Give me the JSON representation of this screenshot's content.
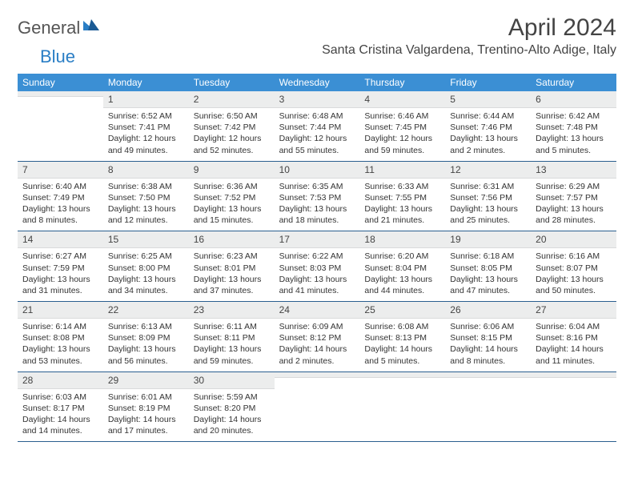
{
  "logo": {
    "text1": "General",
    "text2": "Blue"
  },
  "title": "April 2024",
  "location": "Santa Cristina Valgardena, Trentino-Alto Adige, Italy",
  "colors": {
    "header_bg": "#3b8fd4",
    "daynum_bg": "#eceded",
    "week_border": "#2a5f8f",
    "logo_blue": "#2a7ec5"
  },
  "dow": [
    "Sunday",
    "Monday",
    "Tuesday",
    "Wednesday",
    "Thursday",
    "Friday",
    "Saturday"
  ],
  "weeks": [
    [
      {
        "n": "",
        "sr": "",
        "ss": "",
        "dl": ""
      },
      {
        "n": "1",
        "sr": "Sunrise: 6:52 AM",
        "ss": "Sunset: 7:41 PM",
        "dl": "Daylight: 12 hours and 49 minutes."
      },
      {
        "n": "2",
        "sr": "Sunrise: 6:50 AM",
        "ss": "Sunset: 7:42 PM",
        "dl": "Daylight: 12 hours and 52 minutes."
      },
      {
        "n": "3",
        "sr": "Sunrise: 6:48 AM",
        "ss": "Sunset: 7:44 PM",
        "dl": "Daylight: 12 hours and 55 minutes."
      },
      {
        "n": "4",
        "sr": "Sunrise: 6:46 AM",
        "ss": "Sunset: 7:45 PM",
        "dl": "Daylight: 12 hours and 59 minutes."
      },
      {
        "n": "5",
        "sr": "Sunrise: 6:44 AM",
        "ss": "Sunset: 7:46 PM",
        "dl": "Daylight: 13 hours and 2 minutes."
      },
      {
        "n": "6",
        "sr": "Sunrise: 6:42 AM",
        "ss": "Sunset: 7:48 PM",
        "dl": "Daylight: 13 hours and 5 minutes."
      }
    ],
    [
      {
        "n": "7",
        "sr": "Sunrise: 6:40 AM",
        "ss": "Sunset: 7:49 PM",
        "dl": "Daylight: 13 hours and 8 minutes."
      },
      {
        "n": "8",
        "sr": "Sunrise: 6:38 AM",
        "ss": "Sunset: 7:50 PM",
        "dl": "Daylight: 13 hours and 12 minutes."
      },
      {
        "n": "9",
        "sr": "Sunrise: 6:36 AM",
        "ss": "Sunset: 7:52 PM",
        "dl": "Daylight: 13 hours and 15 minutes."
      },
      {
        "n": "10",
        "sr": "Sunrise: 6:35 AM",
        "ss": "Sunset: 7:53 PM",
        "dl": "Daylight: 13 hours and 18 minutes."
      },
      {
        "n": "11",
        "sr": "Sunrise: 6:33 AM",
        "ss": "Sunset: 7:55 PM",
        "dl": "Daylight: 13 hours and 21 minutes."
      },
      {
        "n": "12",
        "sr": "Sunrise: 6:31 AM",
        "ss": "Sunset: 7:56 PM",
        "dl": "Daylight: 13 hours and 25 minutes."
      },
      {
        "n": "13",
        "sr": "Sunrise: 6:29 AM",
        "ss": "Sunset: 7:57 PM",
        "dl": "Daylight: 13 hours and 28 minutes."
      }
    ],
    [
      {
        "n": "14",
        "sr": "Sunrise: 6:27 AM",
        "ss": "Sunset: 7:59 PM",
        "dl": "Daylight: 13 hours and 31 minutes."
      },
      {
        "n": "15",
        "sr": "Sunrise: 6:25 AM",
        "ss": "Sunset: 8:00 PM",
        "dl": "Daylight: 13 hours and 34 minutes."
      },
      {
        "n": "16",
        "sr": "Sunrise: 6:23 AM",
        "ss": "Sunset: 8:01 PM",
        "dl": "Daylight: 13 hours and 37 minutes."
      },
      {
        "n": "17",
        "sr": "Sunrise: 6:22 AM",
        "ss": "Sunset: 8:03 PM",
        "dl": "Daylight: 13 hours and 41 minutes."
      },
      {
        "n": "18",
        "sr": "Sunrise: 6:20 AM",
        "ss": "Sunset: 8:04 PM",
        "dl": "Daylight: 13 hours and 44 minutes."
      },
      {
        "n": "19",
        "sr": "Sunrise: 6:18 AM",
        "ss": "Sunset: 8:05 PM",
        "dl": "Daylight: 13 hours and 47 minutes."
      },
      {
        "n": "20",
        "sr": "Sunrise: 6:16 AM",
        "ss": "Sunset: 8:07 PM",
        "dl": "Daylight: 13 hours and 50 minutes."
      }
    ],
    [
      {
        "n": "21",
        "sr": "Sunrise: 6:14 AM",
        "ss": "Sunset: 8:08 PM",
        "dl": "Daylight: 13 hours and 53 minutes."
      },
      {
        "n": "22",
        "sr": "Sunrise: 6:13 AM",
        "ss": "Sunset: 8:09 PM",
        "dl": "Daylight: 13 hours and 56 minutes."
      },
      {
        "n": "23",
        "sr": "Sunrise: 6:11 AM",
        "ss": "Sunset: 8:11 PM",
        "dl": "Daylight: 13 hours and 59 minutes."
      },
      {
        "n": "24",
        "sr": "Sunrise: 6:09 AM",
        "ss": "Sunset: 8:12 PM",
        "dl": "Daylight: 14 hours and 2 minutes."
      },
      {
        "n": "25",
        "sr": "Sunrise: 6:08 AM",
        "ss": "Sunset: 8:13 PM",
        "dl": "Daylight: 14 hours and 5 minutes."
      },
      {
        "n": "26",
        "sr": "Sunrise: 6:06 AM",
        "ss": "Sunset: 8:15 PM",
        "dl": "Daylight: 14 hours and 8 minutes."
      },
      {
        "n": "27",
        "sr": "Sunrise: 6:04 AM",
        "ss": "Sunset: 8:16 PM",
        "dl": "Daylight: 14 hours and 11 minutes."
      }
    ],
    [
      {
        "n": "28",
        "sr": "Sunrise: 6:03 AM",
        "ss": "Sunset: 8:17 PM",
        "dl": "Daylight: 14 hours and 14 minutes."
      },
      {
        "n": "29",
        "sr": "Sunrise: 6:01 AM",
        "ss": "Sunset: 8:19 PM",
        "dl": "Daylight: 14 hours and 17 minutes."
      },
      {
        "n": "30",
        "sr": "Sunrise: 5:59 AM",
        "ss": "Sunset: 8:20 PM",
        "dl": "Daylight: 14 hours and 20 minutes."
      },
      {
        "n": "",
        "sr": "",
        "ss": "",
        "dl": ""
      },
      {
        "n": "",
        "sr": "",
        "ss": "",
        "dl": ""
      },
      {
        "n": "",
        "sr": "",
        "ss": "",
        "dl": ""
      },
      {
        "n": "",
        "sr": "",
        "ss": "",
        "dl": ""
      }
    ]
  ]
}
